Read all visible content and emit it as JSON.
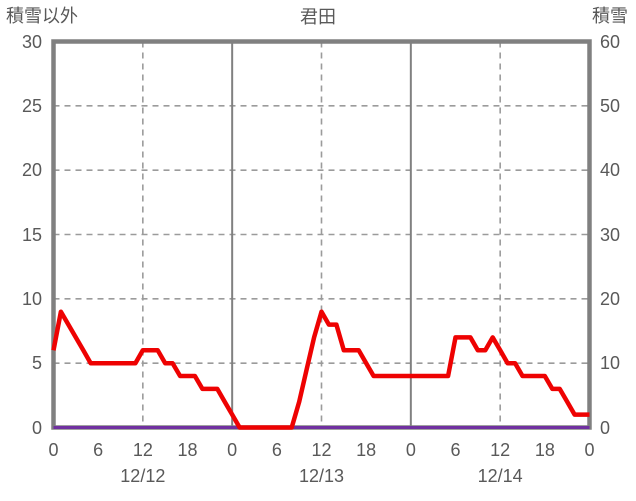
{
  "header": {
    "left_axis_title": "積雪以外",
    "title": "君田",
    "right_axis_title": "積雪"
  },
  "chart_data": {
    "type": "line",
    "title": "君田",
    "left_axis": {
      "title": "積雪以外",
      "min": 0,
      "max": 30,
      "ticks": [
        30,
        25,
        20,
        15,
        10,
        5,
        0
      ]
    },
    "right_axis": {
      "title": "積雪",
      "min": 0,
      "max": 60,
      "ticks": [
        60,
        50,
        40,
        30,
        20,
        10,
        0
      ]
    },
    "x_axis": {
      "unit": "hour",
      "total_hours": 72,
      "tick_hours": [
        0,
        6,
        12,
        18,
        24,
        30,
        36,
        42,
        48,
        54,
        60,
        66,
        72
      ],
      "tick_labels": [
        "0",
        "6",
        "12",
        "18",
        "0",
        "6",
        "12",
        "18",
        "0",
        "6",
        "12",
        "18",
        "0"
      ],
      "date_labels": [
        {
          "label": "12/12",
          "center_hour": 12
        },
        {
          "label": "12/13",
          "center_hour": 36
        },
        {
          "label": "12/14",
          "center_hour": 60
        }
      ],
      "solid_grid_hours": [
        24,
        48
      ],
      "dashed_grid_hours": [
        12,
        36,
        60
      ]
    },
    "grid": {
      "horizontal_dashed_values": [
        5,
        10,
        15,
        20,
        25
      ]
    },
    "series": [
      {
        "name": "積雪",
        "axis": "right",
        "color": "#7030a0",
        "width": 3,
        "values": [
          0,
          0,
          0,
          0,
          0,
          0,
          0,
          0,
          0,
          0,
          0,
          0,
          0,
          0,
          0,
          0,
          0,
          0,
          0,
          0,
          0,
          0,
          0,
          0,
          0,
          0,
          0,
          0,
          0,
          0,
          0,
          0,
          0,
          0,
          0,
          0,
          0,
          0,
          0,
          0,
          0,
          0,
          0,
          0,
          0,
          0,
          0,
          0,
          0,
          0,
          0,
          0,
          0,
          0,
          0,
          0,
          0,
          0,
          0,
          0,
          0,
          0,
          0,
          0,
          0,
          0,
          0,
          0,
          0,
          0,
          0,
          0,
          0
        ]
      },
      {
        "name": "積雪以外",
        "axis": "left",
        "color": "#ee0202",
        "width": 4.5,
        "values": [
          6,
          9,
          8,
          7,
          6,
          5,
          5,
          5,
          5,
          5,
          5,
          5,
          6,
          6,
          6,
          5,
          5,
          4,
          4,
          4,
          3,
          3,
          3,
          2,
          1,
          0,
          0,
          0,
          0,
          0,
          0,
          0,
          0,
          2,
          4.5,
          7,
          9,
          8,
          8,
          6,
          6,
          6,
          5,
          4,
          4,
          4,
          4,
          4,
          4,
          4,
          4,
          4,
          4,
          4,
          7,
          7,
          7,
          6,
          6,
          7,
          6,
          5,
          5,
          4,
          4,
          4,
          4,
          3,
          3,
          2,
          1,
          1,
          1
        ]
      }
    ]
  }
}
